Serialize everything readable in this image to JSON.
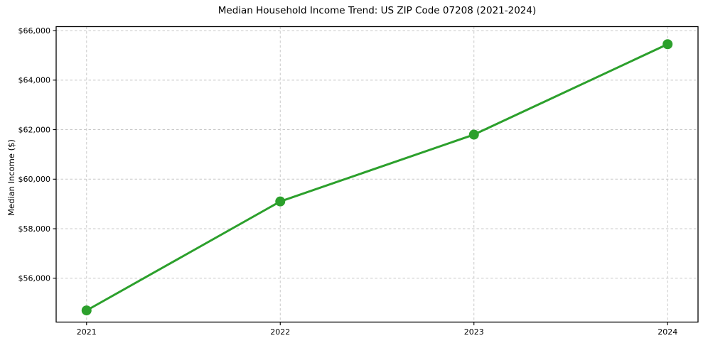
{
  "chart": {
    "title": "Median Household Income Trend: US ZIP Code 07208 (2021-2024)",
    "ylabel": "Median Income ($)"
  },
  "chart_data": {
    "type": "line",
    "title": "Median Household Income Trend: US ZIP Code 07208 (2021-2024)",
    "xlabel": "",
    "ylabel": "Median Income ($)",
    "series": [
      {
        "name": "Median household income",
        "x": [
          2021,
          2022,
          2023,
          2024
        ],
        "values": [
          54700,
          59100,
          61800,
          65450
        ]
      }
    ],
    "xticks": [
      2021,
      2022,
      2023,
      2024
    ],
    "xtick_labels": [
      "2021",
      "2022",
      "2023",
      "2024"
    ],
    "yticks": [
      56000,
      58000,
      60000,
      62000,
      64000,
      66000
    ],
    "ytick_labels": [
      "$56,000",
      "$58,000",
      "$60,000",
      "$62,000",
      "$64,000",
      "$66,000"
    ],
    "xlim": [
      2020.843,
      2024.157
    ],
    "ylim": [
      54230,
      66160
    ],
    "grid": true,
    "grid_style": "dashed",
    "legend": "none",
    "colors": {
      "line": "#2ca02c",
      "marker": "#2ca02c",
      "grid": "#c8c8c8",
      "spine": "#000000",
      "background": "#ffffff"
    }
  }
}
